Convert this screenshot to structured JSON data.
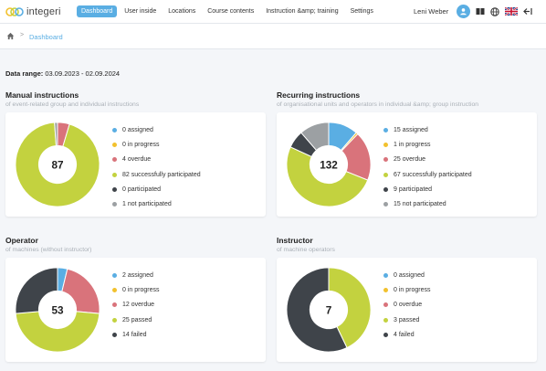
{
  "app": {
    "name": "integeri"
  },
  "nav": {
    "items": [
      "Dashboard",
      "User inside",
      "Locations",
      "Course contents",
      "Instruction &amp; training",
      "Settings"
    ],
    "active": 0
  },
  "header": {
    "user_name": "Leni Weber"
  },
  "icons": {
    "logo": "logo-rings-icon",
    "avatar": "user-avatar-icon",
    "book": "book-icon",
    "language": "globe-icon",
    "flag": "uk-flag-icon",
    "logout": "logout-icon",
    "home": "home-icon",
    "separator": "chevron-right-icon"
  },
  "breadcrumb": {
    "separator": ">",
    "current": "Dashboard"
  },
  "date_range": {
    "label": "Data range:",
    "value": "03.09.2023 - 02.09.2024"
  },
  "colors": {
    "brand": "#5aaee3",
    "assigned": "#5aaee3",
    "in_progress": "#f2c12e",
    "overdue": "#d9737b",
    "success": "#c3d23f",
    "participated": "#3f444a",
    "not_participated": "#9ca0a3"
  },
  "chart_data": [
    {
      "type": "pie",
      "title": "Manual instructions",
      "subtitle": "of event-related group and individual instructions",
      "total": "87",
      "slices": [
        {
          "label": "assigned",
          "value": 0,
          "color": "#5aaee3"
        },
        {
          "label": "in progress",
          "value": 0,
          "color": "#f2c12e"
        },
        {
          "label": "overdue",
          "value": 4,
          "color": "#d9737b"
        },
        {
          "label": "successfully participated",
          "value": 82,
          "color": "#c3d23f"
        },
        {
          "label": "participated",
          "value": 0,
          "color": "#3f444a"
        },
        {
          "label": "not participated",
          "value": 1,
          "color": "#9ca0a3"
        }
      ]
    },
    {
      "type": "pie",
      "title": "Recurring instructions",
      "subtitle": "of organisational units and operators in individual &amp; group instruction",
      "total": "132",
      "slices": [
        {
          "label": "assigned",
          "value": 15,
          "color": "#5aaee3"
        },
        {
          "label": "in progress",
          "value": 1,
          "color": "#f2c12e"
        },
        {
          "label": "overdue",
          "value": 25,
          "color": "#d9737b"
        },
        {
          "label": "successfully participated",
          "value": 67,
          "color": "#c3d23f"
        },
        {
          "label": "participated",
          "value": 9,
          "color": "#3f444a"
        },
        {
          "label": "not participated",
          "value": 15,
          "color": "#9ca0a3"
        }
      ]
    },
    {
      "type": "pie",
      "title": "Operator",
      "subtitle": "of machines (without instructor)",
      "total": "53",
      "slices": [
        {
          "label": "assigned",
          "value": 2,
          "color": "#5aaee3"
        },
        {
          "label": "in progress",
          "value": 0,
          "color": "#f2c12e"
        },
        {
          "label": "overdue",
          "value": 12,
          "color": "#d9737b"
        },
        {
          "label": "passed",
          "value": 25,
          "color": "#c3d23f"
        },
        {
          "label": "failed",
          "value": 14,
          "color": "#3f444a"
        }
      ]
    },
    {
      "type": "pie",
      "title": "Instructor",
      "subtitle": "of machine operators",
      "total": "7",
      "slices": [
        {
          "label": "assigned",
          "value": 0,
          "color": "#5aaee3"
        },
        {
          "label": "in progress",
          "value": 0,
          "color": "#f2c12e"
        },
        {
          "label": "overdue",
          "value": 0,
          "color": "#d9737b"
        },
        {
          "label": "passed",
          "value": 3,
          "color": "#c3d23f"
        },
        {
          "label": "failed",
          "value": 4,
          "color": "#3f444a"
        }
      ]
    }
  ]
}
